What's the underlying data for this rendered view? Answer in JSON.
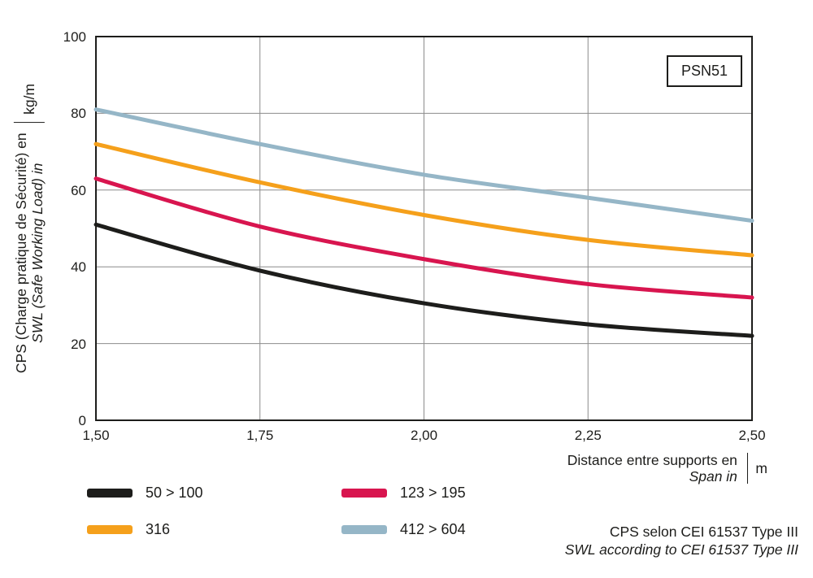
{
  "badge": "PSN51",
  "chart_data": {
    "type": "line",
    "x": [
      1.5,
      1.75,
      2.0,
      2.25,
      2.5
    ],
    "x_tick_labels": [
      "1,50",
      "1,75",
      "2,00",
      "2,25",
      "2,50"
    ],
    "y_ticks": [
      0,
      20,
      40,
      60,
      80,
      100
    ],
    "ylim": [
      0,
      100
    ],
    "xlim": [
      1.5,
      2.5
    ],
    "grid": true,
    "series": [
      {
        "name": "50 > 100",
        "color": "#1d1d1b",
        "values": [
          51,
          39,
          30.5,
          25,
          22
        ]
      },
      {
        "name": "123 > 195",
        "color": "#d8154f",
        "values": [
          63,
          50.5,
          42,
          35.5,
          32
        ]
      },
      {
        "name": "316",
        "color": "#f5a01b",
        "values": [
          72,
          62,
          53.5,
          47,
          43
        ]
      },
      {
        "name": "412 > 604",
        "color": "#95b6c7",
        "values": [
          81,
          72,
          64,
          58,
          52
        ]
      }
    ],
    "ylabel_line1": "CPS (Charge pratique de Sécurité) en",
    "ylabel_line2": "SWL (Safe Working Load) in",
    "ylabel_unit": "kg/m",
    "xlabel_line1": "Distance entre supports en",
    "xlabel_line2": "Span in",
    "xlabel_unit": "m",
    "legend_position": "bottom-left"
  },
  "legend": {
    "items": [
      {
        "label": "50 > 100",
        "color": "#1d1d1b"
      },
      {
        "label": "123 > 195",
        "color": "#d8154f"
      },
      {
        "label": "316",
        "color": "#f5a01b"
      },
      {
        "label": "412 > 604",
        "color": "#95b6c7"
      }
    ]
  },
  "footnote": {
    "line1": "CPS selon CEI 61537 Type III",
    "line2": "SWL according to CEI 61537 Type III"
  },
  "colors": {
    "frame": "#1d1d1b",
    "grid": "#8c8c8c",
    "background": "#ffffff"
  }
}
